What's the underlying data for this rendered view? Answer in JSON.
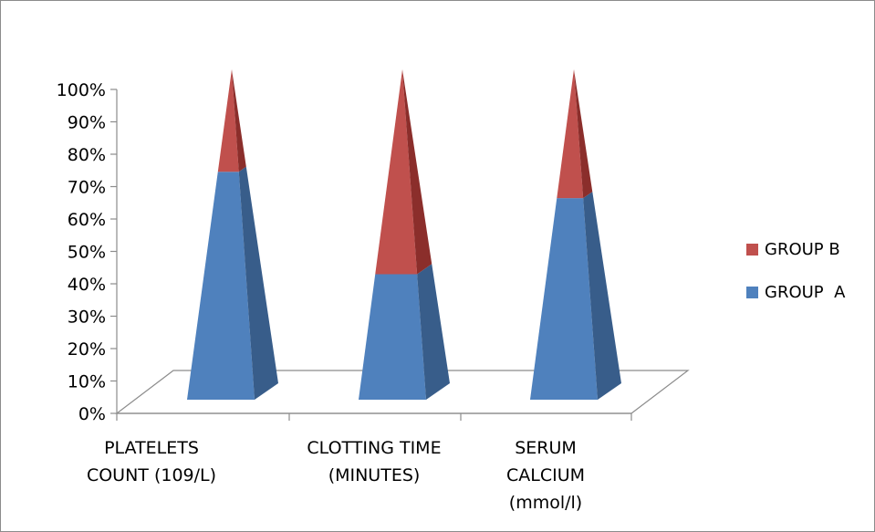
{
  "chart_data": {
    "type": "bar",
    "style": "3d-pyramid-stacked-100",
    "categories": [
      [
        "PLATELETS",
        "COUNT (109/L)"
      ],
      [
        "CLOTTING TIME",
        "(MINUTES)"
      ],
      [
        "SERUM",
        "CALCIUM",
        "(mmol/l)"
      ]
    ],
    "series": [
      {
        "name": "GROUP  A",
        "values": [
          69,
          38,
          61
        ],
        "color": "#4f81bd",
        "shade": "#385d8a"
      },
      {
        "name": "GROUP B",
        "values": [
          31,
          62,
          39
        ],
        "color": "#c0504d",
        "shade": "#8b2e2b"
      }
    ],
    "ylim": [
      0,
      100
    ],
    "y_ticks": [
      "0%",
      "10%",
      "20%",
      "30%",
      "40%",
      "50%",
      "60%",
      "70%",
      "80%",
      "90%",
      "100%"
    ],
    "legend": {
      "position": "right",
      "order": [
        "GROUP B",
        "GROUP  A"
      ]
    },
    "grid": false
  }
}
